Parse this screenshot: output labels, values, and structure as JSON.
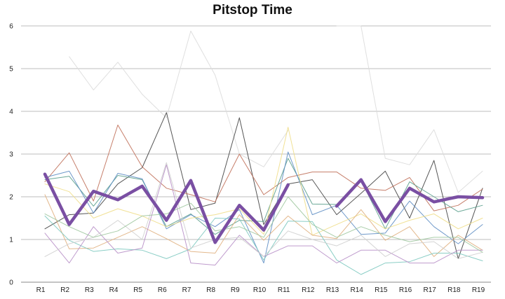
{
  "chart_data": {
    "type": "line",
    "title": "Pitstop Time",
    "xlabel": "",
    "ylabel": "",
    "ylim": [
      0,
      6
    ],
    "yticks": [
      "0",
      "1",
      "2",
      "3",
      "4",
      "5",
      "6"
    ],
    "categories": [
      "R1",
      "R2",
      "R3",
      "R4",
      "R5",
      "R6",
      "R7",
      "R8",
      "R9",
      "R10",
      "R11",
      "R12",
      "R13",
      "R14",
      "R15",
      "R16",
      "R17",
      "R18",
      "R19"
    ],
    "grid": true,
    "legend": "none",
    "highlight_series": 0,
    "series": [
      {
        "color": "#7a4fa3",
        "values": [
          2.53,
          1.35,
          2.13,
          1.93,
          2.25,
          1.45,
          2.38,
          0.93,
          1.8,
          1.22,
          2.28,
          null,
          1.78,
          2.4,
          1.42,
          2.2,
          1.88,
          2.0,
          1.98
        ]
      },
      {
        "color": "#dcdcdc",
        "values": [
          null,
          5.28,
          4.5,
          5.15,
          4.4,
          3.85,
          5.88,
          4.85,
          3.0,
          2.7,
          3.55,
          null,
          6.0,
          6.0,
          2.9,
          2.75,
          3.57,
          2.1,
          2.6
        ]
      },
      {
        "color": "#444444",
        "values": [
          1.25,
          1.58,
          1.62,
          2.3,
          2.68,
          3.97,
          1.7,
          1.85,
          3.85,
          1.35,
          2.3,
          2.4,
          1.58,
          2.08,
          2.6,
          1.5,
          2.85,
          0.55,
          2.2
        ]
      },
      {
        "color": "#c0705a",
        "values": [
          2.35,
          3.03,
          1.9,
          3.68,
          2.7,
          2.2,
          2.05,
          1.88,
          3.0,
          2.05,
          2.45,
          2.58,
          2.58,
          2.2,
          2.15,
          2.45,
          1.67,
          1.8,
          2.18
        ]
      },
      {
        "color": "#5a9e8c",
        "values": [
          2.4,
          2.48,
          1.78,
          2.5,
          2.4,
          1.3,
          1.6,
          1.12,
          1.45,
          1.42,
          2.9,
          1.83,
          1.82,
          2.38,
          1.25,
          2.35,
          2.0,
          1.65,
          1.8
        ]
      },
      {
        "color": "#5f8ec4",
        "values": [
          2.45,
          2.6,
          1.62,
          2.55,
          2.42,
          1.25,
          1.58,
          1.3,
          1.7,
          0.45,
          3.05,
          1.58,
          1.8,
          1.12,
          1.15,
          1.9,
          1.3,
          0.9,
          1.35
        ]
      },
      {
        "color": "#f0de8a",
        "values": [
          2.3,
          2.12,
          1.5,
          1.72,
          1.55,
          1.3,
          1.5,
          1.58,
          1.72,
          1.12,
          3.63,
          1.1,
          1.35,
          1.6,
          1.25,
          1.45,
          1.6,
          1.25,
          1.5
        ]
      },
      {
        "color": "#e0b080",
        "values": [
          2.05,
          0.78,
          0.8,
          1.05,
          1.3,
          1.02,
          0.72,
          0.68,
          1.58,
          0.98,
          1.55,
          1.1,
          1.02,
          1.7,
          0.98,
          1.3,
          0.6,
          1.1,
          0.75
        ]
      },
      {
        "color": "#7ec9c0",
        "values": [
          1.55,
          0.98,
          0.72,
          0.78,
          0.75,
          0.55,
          0.78,
          1.5,
          1.48,
          0.52,
          1.43,
          1.42,
          0.52,
          0.18,
          0.45,
          0.48,
          0.68,
          0.68,
          0.5
        ]
      },
      {
        "color": "#b890c8",
        "values": [
          1.15,
          0.45,
          1.3,
          0.68,
          0.8,
          2.75,
          0.45,
          0.4,
          1.1,
          0.6,
          0.85,
          0.85,
          0.45,
          0.75,
          0.75,
          0.45,
          0.45,
          0.75,
          0.75
        ]
      },
      {
        "color": "#cfcfcf",
        "values": [
          0.6,
          0.9,
          1.05,
          1.45,
          1.0,
          2.8,
          0.8,
          1.0,
          1.05,
          0.6,
          1.2,
          1.0,
          0.85,
          1.1,
          0.6,
          0.9,
          0.95,
          0.55,
          0.7
        ]
      },
      {
        "color": "#a0c8a0",
        "values": [
          1.6,
          1.3,
          1.05,
          1.2,
          1.55,
          1.6,
          1.85,
          1.2,
          1.3,
          1.05,
          2.0,
          1.35,
          1.05,
          1.3,
          1.1,
          0.95,
          1.05,
          1.05,
          0.7
        ]
      }
    ]
  }
}
